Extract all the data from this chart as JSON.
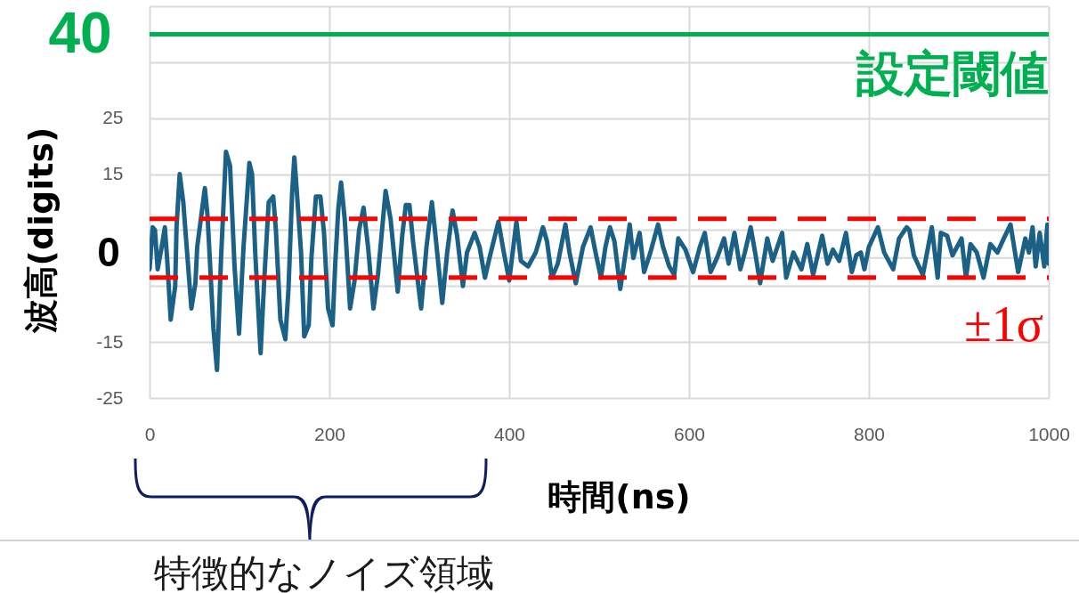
{
  "chart_data": {
    "type": "line",
    "xlabel": "時間(ns)",
    "ylabel": "波高(digits)",
    "x": [
      0,
      3.5,
      6,
      9,
      13.5,
      17,
      19.5,
      23.5,
      28.5,
      30,
      33.5,
      37.5,
      41.5,
      46.5,
      51,
      53,
      61.5,
      64.5,
      71,
      75,
      79.5,
      85,
      89.5,
      94.5,
      99.5,
      104.5,
      111,
      114,
      117.5,
      123.5,
      127.5,
      132.5,
      137.5,
      140.5,
      145.5,
      151,
      154.5,
      158.5,
      161,
      163.5,
      168.5,
      172,
      177,
      180,
      185,
      190,
      194,
      198.5,
      203.5,
      206.5,
      210,
      213,
      217,
      223,
      228,
      233,
      238,
      243,
      249,
      254,
      262.5,
      268,
      276,
      281,
      285,
      289,
      293,
      302,
      308,
      314,
      318,
      325.5,
      331,
      337,
      342,
      348.5,
      353,
      361.5,
      367,
      373,
      378,
      388,
      394,
      400,
      408,
      413,
      421,
      429.5,
      437.5,
      442,
      447.5,
      454,
      462.5,
      467,
      474,
      482,
      490.5,
      496,
      502,
      507,
      512,
      517,
      523.5,
      534,
      538,
      545,
      550,
      557,
      565.5,
      571,
      578,
      583.5,
      588,
      596,
      604.5,
      612,
      617.5,
      624,
      631,
      639,
      644,
      650.5,
      657,
      662,
      668.5,
      674,
      679,
      687,
      693,
      703.5,
      708,
      716,
      725,
      731.5,
      738,
      748,
      754,
      760,
      767,
      774.5,
      781,
      786,
      791,
      795,
      800,
      810,
      817,
      827,
      833.5,
      842,
      845,
      850,
      860,
      870,
      876.5,
      880,
      887,
      893,
      903,
      908,
      913,
      920,
      927.5,
      935,
      943,
      950,
      957.5,
      963,
      966,
      974,
      978,
      982,
      985.5,
      990,
      995,
      998.5,
      1000
    ],
    "series": [
      {
        "color": "#1b6186",
        "values": [
          -2,
          5.5,
          5,
          -2,
          2,
          5.5,
          0,
          -11,
          -5,
          5.5,
          15,
          10,
          1.5,
          -9,
          -4.5,
          2,
          12.5,
          7.5,
          -12.5,
          -20,
          0,
          19,
          16.5,
          -1.5,
          -13.5,
          2,
          17,
          15,
          1,
          -17,
          -4,
          10,
          11,
          5,
          -11,
          -14.5,
          -5.5,
          11.5,
          18,
          12.5,
          1,
          -14,
          -12,
          0,
          11,
          11,
          4.5,
          -9,
          -12,
          -1,
          9,
          13.5,
          7,
          -9,
          -4,
          5,
          9,
          2,
          -9,
          -3,
          12,
          7,
          -6,
          4,
          9.5,
          9.5,
          3,
          -9,
          2,
          10,
          4,
          -8,
          1,
          8.5,
          4,
          -5,
          1,
          4.5,
          2,
          -3.5,
          0,
          6.5,
          1,
          -4,
          6.5,
          -0.5,
          -1.5,
          1,
          5.5,
          3,
          -3.5,
          -1,
          6,
          1,
          -4.5,
          2,
          5.5,
          1,
          -3.5,
          2,
          5.5,
          3,
          -5.5,
          6,
          0,
          4.5,
          -2.5,
          1,
          6,
          2,
          -1.5,
          -3,
          3.5,
          1.5,
          -2.5,
          2,
          4.5,
          -2.5,
          0,
          3.5,
          -1,
          4.5,
          -2,
          1,
          5.5,
          0.5,
          -4.5,
          3.5,
          -0.5,
          4.5,
          -3.5,
          1,
          -2,
          2.5,
          -3,
          4,
          -1,
          1.5,
          -0.5,
          4.5,
          -2.5,
          0.5,
          1,
          -2,
          2,
          5.5,
          1,
          -2,
          3.5,
          5.5,
          5,
          0.5,
          -3,
          5.5,
          -3.5,
          4.5,
          4,
          0.5,
          3.5,
          -3.5,
          2.5,
          1,
          -3.5,
          2.5,
          1,
          3.5,
          6,
          0.5,
          -2.5,
          3.5,
          1,
          5.5,
          -1.5,
          4.5,
          -1.5,
          6,
          -1
        ]
      }
    ],
    "xlim": [
      0,
      1000
    ],
    "xticks": [
      0,
      200,
      400,
      600,
      800,
      1000
    ],
    "ylim": [
      -25,
      45
    ],
    "yticks": [
      -25,
      -15,
      {
        "value": -5,
        "label": null
      },
      {
        "value": 5,
        "label": null
      },
      15,
      25,
      {
        "value": 35,
        "label": null
      },
      {
        "value": 45,
        "label": null
      }
    ],
    "grid": true,
    "ref_lines": [
      {
        "axis": "y",
        "value": 0,
        "color": "#d9d9d9",
        "label": "0"
      },
      {
        "axis": "y",
        "value": 40,
        "color": "#00b050",
        "label": "設定閾値"
      },
      {
        "axis": "y",
        "value": 7,
        "color": "#ff0000",
        "line_style": "dashed"
      },
      {
        "axis": "y",
        "value": -3.5,
        "color": "#ff0000",
        "line_style": "dashed",
        "label": "±1σ"
      }
    ],
    "annotations": [
      "40",
      "特徴的なノイズ領域"
    ]
  }
}
